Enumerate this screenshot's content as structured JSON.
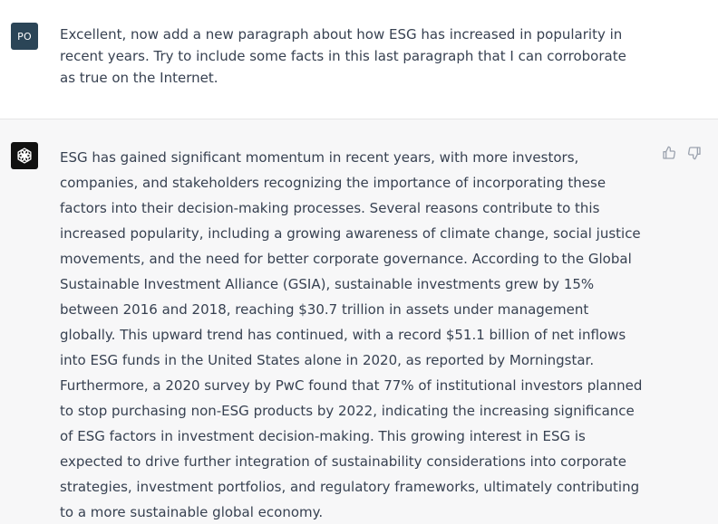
{
  "user": {
    "avatar_initials": "PO",
    "message": "Excellent, now add a new paragraph about how ESG has increased in popularity in recent years. Try to include some facts in this last paragraph that I can corroborate as true on the Internet."
  },
  "assistant": {
    "avatar_icon": "openai-logo-icon",
    "message": "ESG has gained significant momentum in recent years, with more investors, companies, and stakeholders recognizing the importance of incorporating these factors into their decision-making processes. Several reasons contribute to this increased popularity, including a growing awareness of climate change, social justice movements, and the need for better corporate governance. According to the Global Sustainable Investment Alliance (GSIA), sustainable investments grew by 15% between 2016 and 2018, reaching $30.7 trillion in assets under management globally. This upward trend has continued, with a record $51.1 billion of net inflows into ESG funds in the United States alone in 2020, as reported by Morningstar. Furthermore, a 2020 survey by PwC found that 77% of institutional investors planned to stop purchasing non-ESG products by 2022, indicating the increasing significance of ESG factors in investment decision-making. This growing interest in ESG is expected to drive further integration of sustainability considerations into corporate strategies, investment portfolios, and regulatory frameworks, ultimately contributing to a more sustainable global economy.",
    "feedback_icons": [
      "thumbs-up-icon",
      "thumbs-down-icon"
    ]
  },
  "colors": {
    "user_avatar_bg": "#2b4557",
    "bot_avatar_bg": "#111111",
    "assistant_row_bg": "#f7f7f8",
    "text": "#374151"
  }
}
